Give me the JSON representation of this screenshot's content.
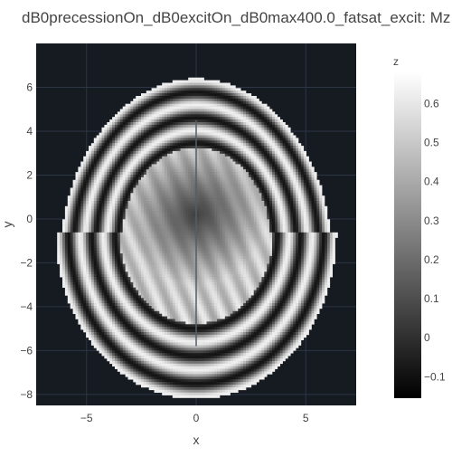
{
  "chart_data": {
    "type": "heatmap",
    "title": "dB0precessionOn_dB0excitOn_dB0max400.0_fatsat_excit: Mz",
    "xlabel": "x",
    "ylabel": "y",
    "xlim": [
      -7.3,
      7.3
    ],
    "ylim": [
      -8.5,
      8.0
    ],
    "x_ticks": [
      -5,
      0,
      5
    ],
    "x_tick_labels": [
      "−5",
      "0",
      "5"
    ],
    "y_ticks": [
      6,
      4,
      2,
      0,
      -2,
      -4,
      -6,
      -8
    ],
    "y_tick_labels": [
      "6",
      "4",
      "2",
      "0",
      "−2",
      "−4",
      "−6",
      "−8"
    ],
    "colorbar": {
      "title": "z",
      "range": [
        -0.155,
        0.68
      ],
      "ticks": [
        0.6,
        0.5,
        0.4,
        0.3,
        0.2,
        0.1,
        0,
        -0.1
      ],
      "tick_labels": [
        "0.6",
        "0.5",
        "0.4",
        "0.3",
        "0.2",
        "0.1",
        "0",
        "−0.1"
      ],
      "colorscale": "greys"
    },
    "grid": true,
    "description_values": {
      "center_min": -0.05,
      "peak": 0.68,
      "background": null
    }
  }
}
